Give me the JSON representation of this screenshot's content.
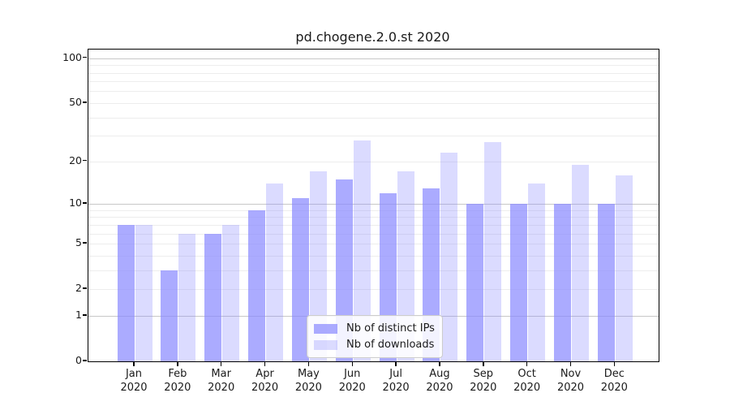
{
  "figure": {
    "title": "pd.chogene.2.0.st 2020"
  },
  "colors": {
    "bar_hue": "#8888ff",
    "ips_opacity": 0.7,
    "downloads_opacity": 0.3,
    "grid_minor": "#ededed",
    "grid_major": "#c8c8c8",
    "axis": "#000000",
    "text": "#1a1a1a",
    "legend_border": "#cccccc",
    "legend_bg": "rgba(255,255,255,0.85)"
  },
  "chart_data": {
    "type": "bar",
    "title": "pd.chogene.2.0.st 2020",
    "x_categories": [
      "Jan",
      "Feb",
      "Mar",
      "Apr",
      "May",
      "Jun",
      "Jul",
      "Aug",
      "Sep",
      "Oct",
      "Nov",
      "Dec"
    ],
    "x_year": "2020",
    "series": [
      {
        "name": "Nb of distinct IPs",
        "values": [
          7,
          3,
          6,
          9,
          11,
          15,
          12,
          13,
          10,
          10,
          10,
          10
        ]
      },
      {
        "name": "Nb of downloads",
        "values": [
          7,
          6,
          7,
          14,
          17,
          28,
          17,
          23,
          27,
          14,
          19,
          16
        ]
      }
    ],
    "y_scale": "log10(value+1)",
    "y_ticks": [
      0,
      1,
      2,
      5,
      10,
      20,
      50,
      100
    ],
    "y_gridlines_minor": [
      2,
      3,
      4,
      5,
      6,
      7,
      8,
      9,
      20,
      30,
      40,
      50,
      60,
      70,
      80,
      90
    ],
    "y_gridlines_major": [
      1,
      10,
      100
    ],
    "ylim": [
      0,
      115
    ],
    "grid": true,
    "legend_position": "lower center inside plot"
  }
}
